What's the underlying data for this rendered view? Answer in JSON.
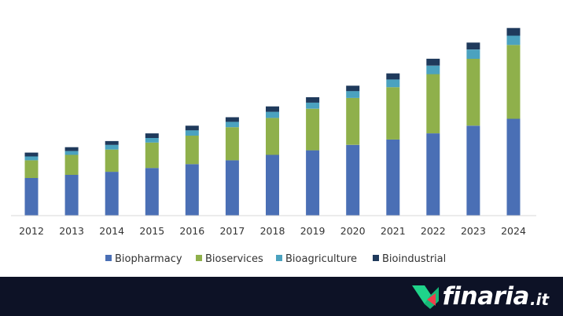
{
  "chart_data": {
    "type": "bar",
    "stacked": true,
    "categories": [
      "2012",
      "2013",
      "2014",
      "2015",
      "2016",
      "2017",
      "2018",
      "2019",
      "2020",
      "2021",
      "2022",
      "2023",
      "2024"
    ],
    "series": [
      {
        "name": "Biopharmacy",
        "color": "#4a6fb5",
        "values": [
          49,
          53,
          57,
          62,
          67,
          72,
          79,
          85,
          92,
          99,
          107,
          117,
          126
        ]
      },
      {
        "name": "Bioservices",
        "color": "#8fb04b",
        "values": [
          23,
          26,
          29,
          33,
          37,
          43,
          48,
          54,
          61,
          68,
          77,
          87,
          96
        ]
      },
      {
        "name": "Bioagriculture",
        "color": "#4ba2bf",
        "values": [
          5,
          5,
          6,
          6,
          7,
          7,
          8,
          8,
          9,
          10,
          11,
          12,
          12
        ]
      },
      {
        "name": "Bioindustrial",
        "color": "#1f3a5c",
        "values": [
          5,
          5,
          5,
          6,
          6,
          6,
          7,
          7,
          7,
          8,
          9,
          9,
          10
        ]
      }
    ],
    "ylim": [
      0,
      260
    ],
    "grid": false,
    "legend": "bottom",
    "title": "",
    "xlabel": "",
    "ylabel": ""
  },
  "footer": {
    "brand": "finaria",
    "tld": ".it",
    "background": "#0d1226",
    "accent": "#1fd38a",
    "accent2": "#ef3e4a",
    "logo_icon": "finaria-logo-mark"
  }
}
